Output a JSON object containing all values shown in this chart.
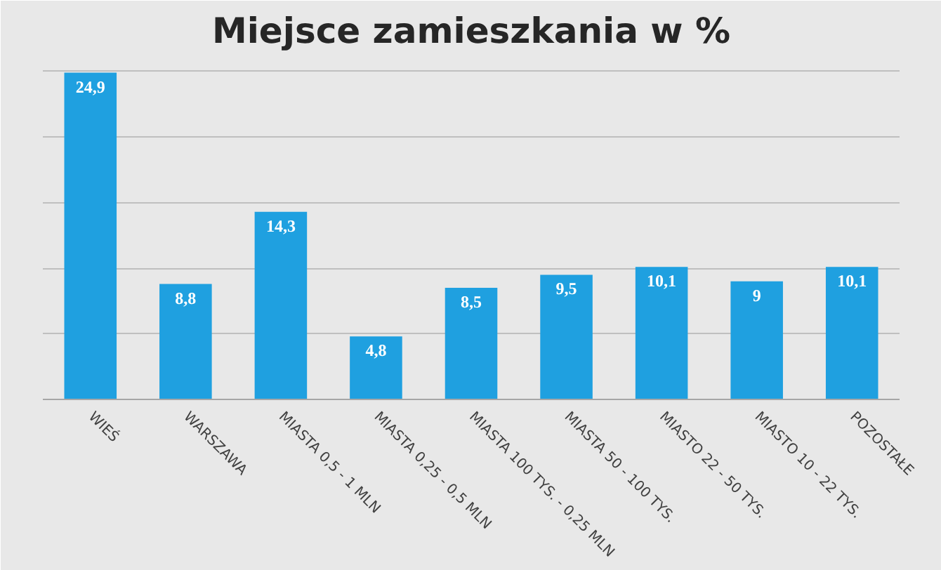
{
  "chart_data": {
    "type": "bar",
    "title": "Miejsce zamieszkania w %",
    "categories": [
      "WIEŚ",
      "WARSZAWA",
      "MIASTA 0,5 - 1 MLN",
      "MIASTA 0,25 - 0,5 MLN",
      "MIASTA 100 TYS. - 0,25 MLN",
      "MIASTA 50 - 100 TYS.",
      "MIASTO 22 - 50 TYS.",
      "MIASTO 10 - 22 TYS.",
      "POZOSTAŁE"
    ],
    "values": [
      24.9,
      8.8,
      14.3,
      4.8,
      8.5,
      9.5,
      10.1,
      9,
      10.1
    ],
    "value_labels": [
      "24,9",
      "8,8",
      "14,3",
      "4,8",
      "8,5",
      "9,5",
      "10,1",
      "9",
      "10,1"
    ],
    "color": "#1fa0e0",
    "ylim": [
      0,
      26
    ],
    "yticks": [
      {
        "value": 0,
        "label": null
      },
      {
        "value": 5,
        "label": null
      },
      {
        "value": 10,
        "label": null
      },
      {
        "value": 15,
        "label": null
      },
      {
        "value": 20,
        "label": null
      },
      {
        "value": 25,
        "label": null
      }
    ],
    "grid": "y",
    "tick_labels": "x"
  }
}
